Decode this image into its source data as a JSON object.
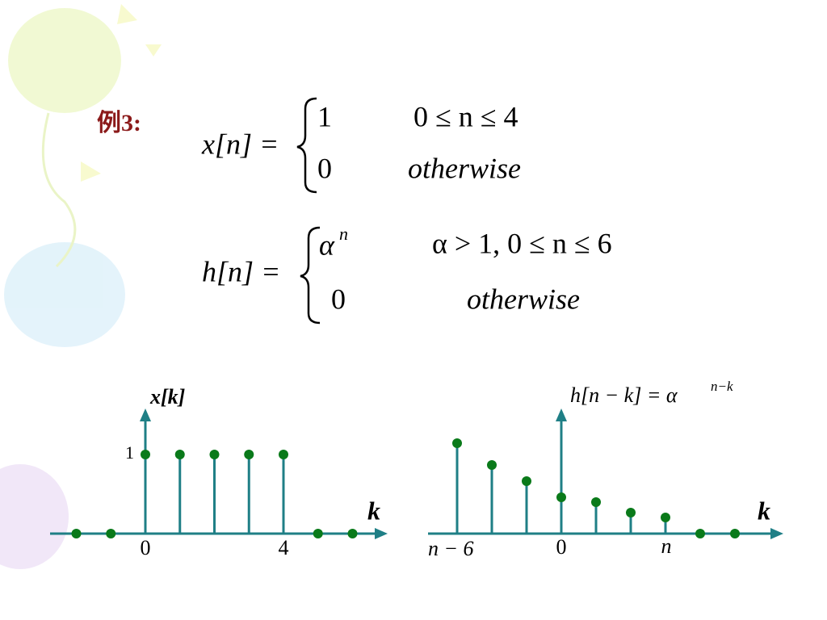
{
  "example_label": "例3:",
  "equations": [
    {
      "lhs": "x[n] =",
      "cases": [
        {
          "value": "1",
          "condition": "0 ≤ n ≤ 4"
        },
        {
          "value": "0",
          "condition": "otherwise"
        }
      ]
    },
    {
      "lhs": "h[n] =",
      "cases": [
        {
          "value": "α",
          "exponent": "n",
          "condition": "α > 1, 0 ≤ n ≤ 6"
        },
        {
          "value": "0",
          "condition": "otherwise"
        }
      ]
    }
  ],
  "left_plot": {
    "y_axis_label": "x[k]",
    "x_axis_label": "k",
    "k": [
      -2,
      -1,
      0,
      1,
      2,
      3,
      4,
      5,
      6
    ],
    "values": [
      0,
      0,
      1,
      1,
      1,
      1,
      1,
      0,
      0
    ],
    "xticks": [
      0,
      4
    ],
    "yticks": [
      1
    ]
  },
  "right_plot": {
    "y_axis_label": "h[n − k] = α",
    "y_axis_label_exponent": "n−k",
    "x_axis_label": "k",
    "tick_labels": [
      "n − 6",
      "0",
      "n"
    ]
  }
}
